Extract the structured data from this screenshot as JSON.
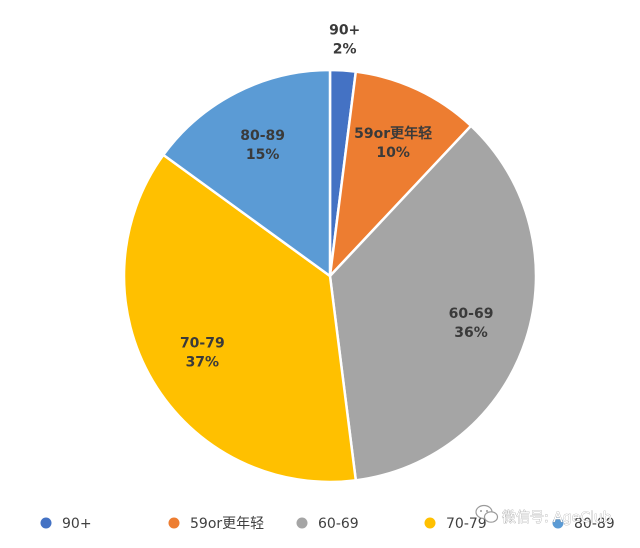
{
  "chart_data": {
    "type": "pie",
    "title": "",
    "start_angle_deg": 0,
    "direction": "clockwise",
    "slices": [
      {
        "label": "90+",
        "value": 2,
        "value_text": "2%",
        "color": "#4472c4"
      },
      {
        "label": "59or更年轻",
        "value": 10,
        "value_text": "10%",
        "color": "#ed7d31"
      },
      {
        "label": "60-69",
        "value": 36,
        "value_text": "36%",
        "color": "#a5a5a5"
      },
      {
        "label": "70-79",
        "value": 37,
        "value_text": "37%",
        "color": "#ffc000"
      },
      {
        "label": "80-89",
        "value": 15,
        "value_text": "15%",
        "color": "#5b9bd5"
      }
    ],
    "legend_position": "bottom"
  },
  "watermark": {
    "text": "微信号: AgeClub",
    "icon": "wechat-icon"
  }
}
